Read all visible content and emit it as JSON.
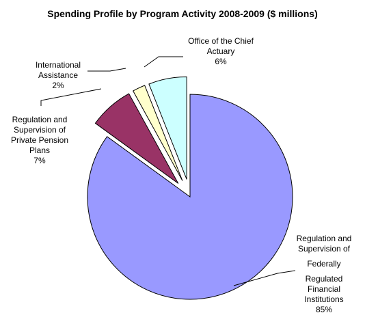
{
  "chart_data": {
    "type": "pie",
    "title": "Spending Profile by Program Activity 2008-2009 ($ millions)",
    "slices": [
      {
        "label": "Regulation and Supervision of Federally Regulated Financial Institutions",
        "value": 85,
        "value_label": "85%",
        "color": "#9999ff",
        "exploded": false
      },
      {
        "label": "Regulation and Supervision of Private Pension Plans",
        "value": 7,
        "value_label": "7%",
        "color": "#993366",
        "exploded": true
      },
      {
        "label": "International Assistance",
        "value": 2,
        "value_label": "2%",
        "color": "#ffffcc",
        "exploded": true
      },
      {
        "label": "Office of the Chief Actuary",
        "value": 6,
        "value_label": "6%",
        "color": "#ccffff",
        "exploded": true
      }
    ]
  },
  "labels": {
    "osfi": [
      "Regulation and",
      "Supervision of",
      "Federally",
      "Regulated",
      "Financial",
      "Institutions"
    ],
    "pension": [
      "Regulation and",
      "Supervision of",
      "Private Pension",
      "Plans"
    ],
    "intl": [
      "International",
      "Assistance"
    ],
    "actuary": [
      "Office of the Chief",
      "Actuary"
    ]
  }
}
